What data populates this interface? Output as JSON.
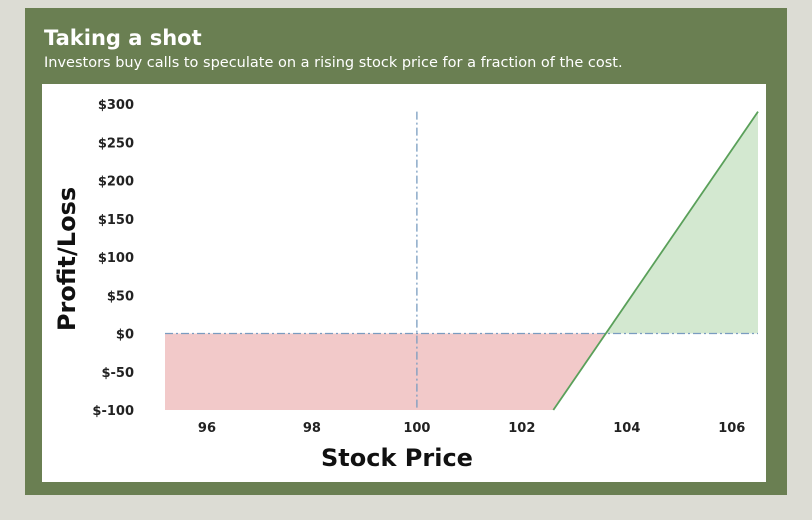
{
  "header": {
    "title": "Taking a shot",
    "subtitle": "Investors buy calls to speculate on a rising stock price for a fraction of the cost."
  },
  "colors": {
    "frame": "#6a7f52",
    "loss_fill": "#f2c9c9",
    "profit_fill": "#d3e8d0",
    "payoff_line": "#5aa05a",
    "reference_line": "#7a9cc0"
  },
  "chart_data": {
    "type": "area",
    "title": "",
    "xlabel": "Stock Price",
    "ylabel": "Profit/Loss",
    "x_ticks": [
      96,
      98,
      100,
      102,
      104,
      106
    ],
    "x_tick_labels": [
      "96",
      "98",
      "100",
      "102",
      "104",
      "106"
    ],
    "y_ticks": [
      -100,
      -50,
      0,
      50,
      100,
      150,
      200,
      250,
      300
    ],
    "y_tick_labels": [
      "$-100",
      "$-50",
      "$0",
      "$50",
      "$100",
      "$150",
      "$200",
      "$250",
      "$300"
    ],
    "xlim": [
      95.2,
      106.5
    ],
    "ylim": [
      -100,
      300
    ],
    "series": [
      {
        "points": [
          [
            95.2,
            -100
          ],
          [
            102.6,
            -100
          ],
          [
            103.6,
            0
          ],
          [
            106.5,
            290
          ]
        ]
      }
    ],
    "reference_lines": {
      "vertical_x": 100,
      "horizontal_y": 0
    },
    "grid": false,
    "legend": "none"
  }
}
